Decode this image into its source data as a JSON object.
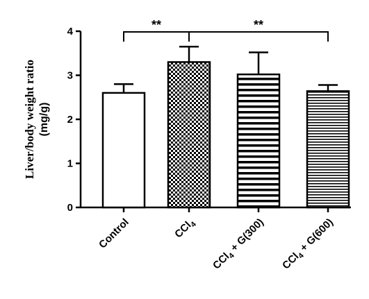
{
  "chart_data": {
    "type": "bar",
    "ylabel_line1": "Liver/body weight ratio",
    "ylabel_line2": "(mg/g)",
    "ylim": [
      0,
      4
    ],
    "yticks": [
      "0",
      "1",
      "2",
      "3",
      "4"
    ],
    "categories": [
      {
        "main": "Control",
        "sub": "",
        "tail": ""
      },
      {
        "main": "CCl",
        "sub": "4",
        "tail": ""
      },
      {
        "main": "CCl",
        "sub": "4",
        "tail": " + G(300)"
      },
      {
        "main": "CCl",
        "sub": "4",
        "tail": " + G(600)"
      }
    ],
    "values": [
      2.6,
      3.3,
      3.02,
      2.64
    ],
    "errors": [
      0.2,
      0.35,
      0.5,
      0.14
    ],
    "patterns": [
      "white",
      "checker",
      "hstripes-wide",
      "hstripes-fine"
    ],
    "significance": [
      {
        "from": 0,
        "to": 1,
        "label": "**"
      },
      {
        "from": 1,
        "to": 3,
        "label": "**"
      }
    ]
  }
}
